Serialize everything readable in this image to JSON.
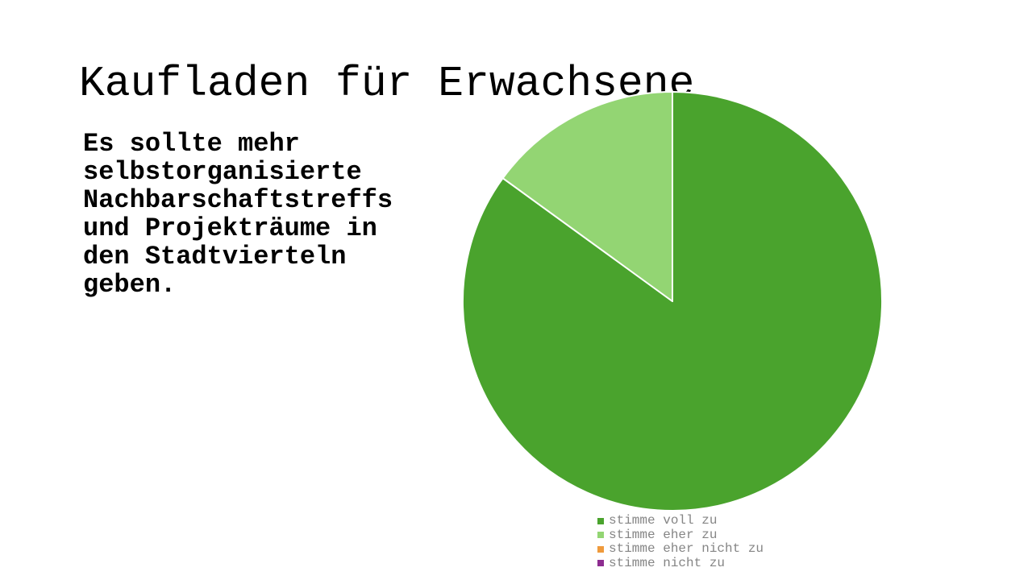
{
  "slide": {
    "title": "Kaufladen für Erwachsene",
    "statement": "Es sollte mehr selbstorganisierte Nachbarschaftstreffs und Projekträume in den Stadtvierteln geben."
  },
  "chart_data": {
    "type": "pie",
    "title": "",
    "categories": [
      "stimme voll zu",
      "stimme eher zu",
      "stimme eher nicht zu",
      "stimme nicht zu"
    ],
    "values": [
      85,
      15,
      0,
      0
    ],
    "colors": [
      "#4aa32d",
      "#93d573",
      "#ef9a3c",
      "#8d2c90"
    ],
    "start_angle_deg": 0,
    "direction": "clockwise",
    "slice_border_color": "#ffffff",
    "legend_position": "bottom-right"
  },
  "theme": {
    "background": "#ffffff",
    "title_color": "#000000",
    "statement_color": "#000000",
    "legend_text_color": "#858585"
  }
}
